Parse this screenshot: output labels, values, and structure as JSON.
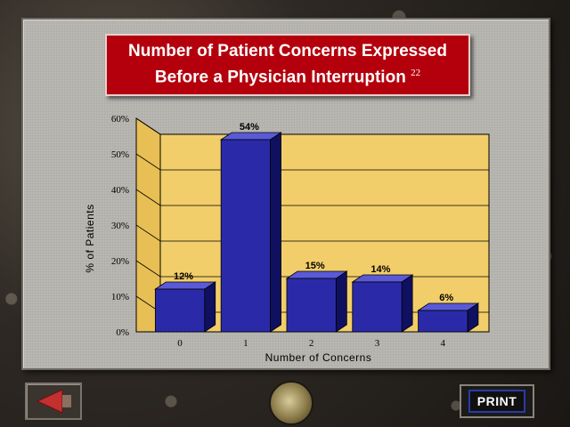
{
  "title": {
    "line1": "Number of Patient Concerns Expressed",
    "line2": "Before a Physician Interruption",
    "superscript": "22"
  },
  "chart_data": {
    "type": "bar",
    "categories": [
      "0",
      "1",
      "2",
      "3",
      "4"
    ],
    "values": [
      12,
      54,
      15,
      14,
      6
    ],
    "data_labels": [
      "12%",
      "54%",
      "15%",
      "14%",
      "6%"
    ],
    "xlabel": "Number of Concerns",
    "ylabel": "% of Patients",
    "ylim": [
      0,
      60
    ],
    "yticks": [
      "0%",
      "10%",
      "20%",
      "30%",
      "40%",
      "50%",
      "60%"
    ],
    "grid": true,
    "bar_color": "#2a2aa8",
    "wall_color": "#f2ce6a"
  },
  "nav": {
    "back_icon": "left-arrow-icon",
    "center_icon": "shell-icon",
    "print_label": "PRINT"
  }
}
